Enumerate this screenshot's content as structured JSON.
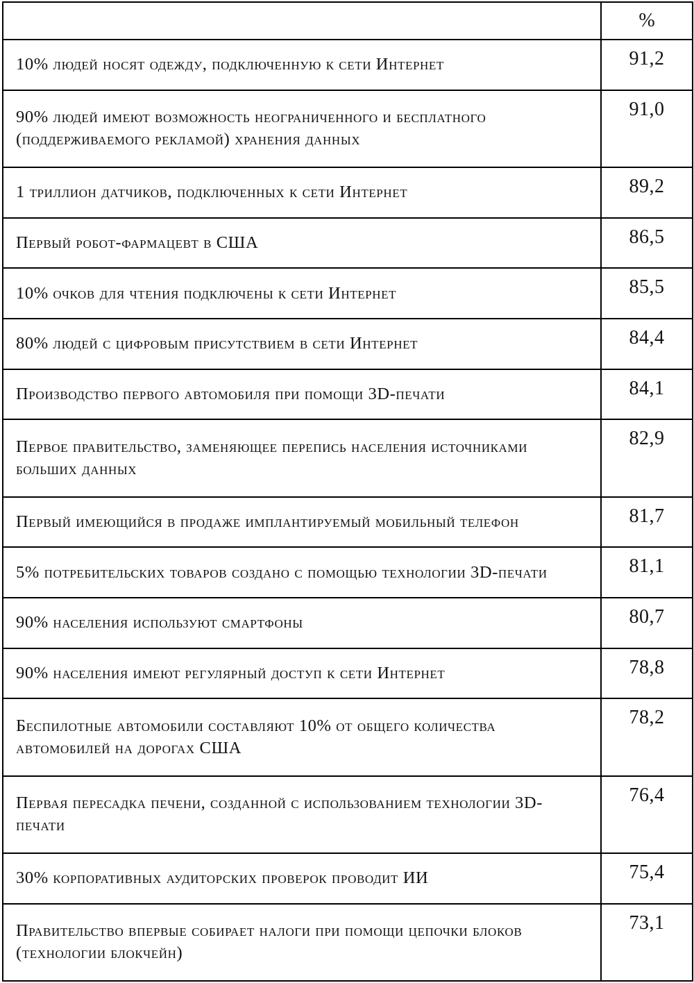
{
  "page": {
    "background_color": "#ffffff",
    "text_color": "#121212",
    "border_color": "#000000"
  },
  "table": {
    "header": {
      "label_col": "",
      "percent_col": "%"
    },
    "rows": [
      {
        "label": "10% людей носят одежду, подключенную к сети Интернет",
        "value": "91,2"
      },
      {
        "label": "90% людей имеют возможность неограниченного и бесплатного (поддерживаемого рекламой) хранения данных",
        "value": "91,0"
      },
      {
        "label": "1 триллион датчиков, подключенных к сети Интернет",
        "value": "89,2"
      },
      {
        "label": "Первый робот-фармацевт в США",
        "value": "86,5"
      },
      {
        "label": "10% очков для чтения подключены к сети Интернет",
        "value": "85,5"
      },
      {
        "label": "80% людей с цифровым присутствием в сети Интернет",
        "value": "84,4"
      },
      {
        "label": "Производство первого автомобиля при помощи 3D-печати",
        "value": "84,1"
      },
      {
        "label": "Первое правительство, заменяющее перепись населения источниками больших данных",
        "value": "82,9"
      },
      {
        "label": "Первый имеющийся в продаже имплантируемый мобильный телефон",
        "value": "81,7"
      },
      {
        "label": "5% потребительских товаров создано с помощью технологии 3D-печати",
        "value": "81,1"
      },
      {
        "label": "90% населения используют смартфоны",
        "value": "80,7"
      },
      {
        "label": "90% населения имеют регулярный доступ к сети Интернет",
        "value": "78,8"
      },
      {
        "label": "Беспилотные автомобили составляют 10% от общего количества автомобилей на дорогах США",
        "value": "78,2"
      },
      {
        "label": "Первая пересадка печени, созданной с использованием технологии 3D-печати",
        "value": "76,4"
      },
      {
        "label": "30% корпоративных аудиторских проверок проводит ИИ",
        "value": "75,4"
      },
      {
        "label": "Правительство впервые собирает налоги при помощи цепочки блоков (технологии блокчейн)",
        "value": "73,1"
      }
    ]
  }
}
